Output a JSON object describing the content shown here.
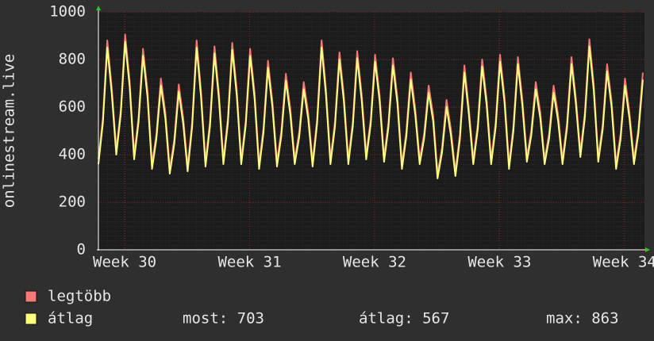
{
  "chart_data": {
    "type": "line",
    "y_label": "onlinestream.live",
    "xlim": [
      29.79,
      34.16
    ],
    "xticks": [
      {
        "value": 30,
        "label": "Week 30"
      },
      {
        "value": 31,
        "label": "Week 31"
      },
      {
        "value": 32,
        "label": "Week 32"
      },
      {
        "value": 33,
        "label": "Week 33"
      },
      {
        "value": 34,
        "label": "Week 34"
      }
    ],
    "ylim": [
      0,
      1000
    ],
    "yticks": [
      0,
      200,
      400,
      600,
      800,
      1000
    ],
    "grid": true,
    "x": [
      29.79,
      29.826,
      29.861,
      29.897,
      29.933,
      29.969,
      30.004,
      30.04,
      30.076,
      30.111,
      30.147,
      30.183,
      30.219,
      30.254,
      30.29,
      30.326,
      30.361,
      30.397,
      30.433,
      30.469,
      30.504,
      30.54,
      30.576,
      30.611,
      30.647,
      30.683,
      30.719,
      30.754,
      30.79,
      30.826,
      30.861,
      30.897,
      30.933,
      30.969,
      31.004,
      31.04,
      31.076,
      31.111,
      31.147,
      31.183,
      31.219,
      31.254,
      31.29,
      31.326,
      31.361,
      31.397,
      31.433,
      31.469,
      31.504,
      31.54,
      31.576,
      31.611,
      31.647,
      31.683,
      31.719,
      31.754,
      31.79,
      31.826,
      31.861,
      31.897,
      31.933,
      31.969,
      32.004,
      32.04,
      32.076,
      32.111,
      32.147,
      32.183,
      32.219,
      32.254,
      32.29,
      32.326,
      32.361,
      32.397,
      32.433,
      32.469,
      32.504,
      32.54,
      32.576,
      32.611,
      32.647,
      32.683,
      32.719,
      32.754,
      32.79,
      32.826,
      32.861,
      32.897,
      32.933,
      32.969,
      33.004,
      33.04,
      33.076,
      33.111,
      33.147,
      33.183,
      33.219,
      33.254,
      33.29,
      33.326,
      33.361,
      33.397,
      33.433,
      33.469,
      33.504,
      33.54,
      33.576,
      33.611,
      33.647,
      33.683,
      33.719,
      33.754,
      33.79,
      33.826,
      33.861,
      33.897,
      33.933,
      33.969,
      34.004,
      34.04,
      34.076,
      34.111,
      34.147
    ],
    "series": [
      {
        "name": "legtöbb",
        "color": "#f87878",
        "values": [
          380,
          555,
          880,
          680,
          420,
          590,
          905,
          710,
          400,
          556,
          845,
          667,
          360,
          486,
          720,
          576,
          340,
          464,
          695,
          553,
          350,
          536,
          880,
          668,
          370,
          540,
          855,
          661,
          380,
          552,
          870,
          674,
          380,
          543,
          845,
          659,
          360,
          512,
          795,
          621,
          370,
          500,
          740,
          592,
          380,
          494,
          705,
          575,
          370,
          549,
          880,
          676,
          380,
          538,
          830,
          650,
          380,
          539,
          835,
          653,
          400,
          547,
          820,
          652,
          390,
          535,
          805,
          639,
          360,
          495,
          745,
          591,
          380,
          489,
          690,
          566,
          320,
          429,
          630,
          506,
          330,
          486,
          775,
          597,
          380,
          527,
          800,
          632,
          380,
          534,
          820,
          644,
          360,
          518,
          810,
          630,
          390,
          500,
          705,
          579,
          380,
          489,
          690,
          566,
          380,
          531,
          810,
          638,
          410,
          576,
          885,
          695,
          390,
          527,
          780,
          624,
          360,
          486,
          720,
          576,
          380,
          508,
          745
        ]
      },
      {
        "name": "átlag",
        "color": "#ffff80",
        "values": [
          360,
          535,
          850,
          655,
          400,
          570,
          875,
          685,
          380,
          536,
          815,
          642,
          340,
          466,
          690,
          551,
          320,
          444,
          665,
          528,
          330,
          516,
          850,
          643,
          350,
          520,
          825,
          636,
          360,
          532,
          840,
          649,
          360,
          523,
          815,
          634,
          340,
          492,
          765,
          596,
          350,
          480,
          710,
          567,
          360,
          474,
          675,
          550,
          350,
          529,
          850,
          651,
          360,
          518,
          800,
          625,
          360,
          519,
          805,
          628,
          380,
          527,
          790,
          627,
          370,
          515,
          775,
          614,
          340,
          475,
          715,
          566,
          360,
          469,
          660,
          541,
          300,
          409,
          600,
          481,
          310,
          466,
          745,
          572,
          360,
          507,
          770,
          607,
          360,
          514,
          790,
          619,
          340,
          498,
          780,
          605,
          370,
          480,
          675,
          554,
          360,
          469,
          660,
          541,
          360,
          511,
          780,
          613,
          390,
          556,
          855,
          670,
          370,
          507,
          750,
          599,
          340,
          466,
          690,
          551,
          360,
          488,
          715
        ]
      }
    ],
    "stats": [
      "most: 703",
      "átlag: 567",
      "max: 863"
    ]
  }
}
